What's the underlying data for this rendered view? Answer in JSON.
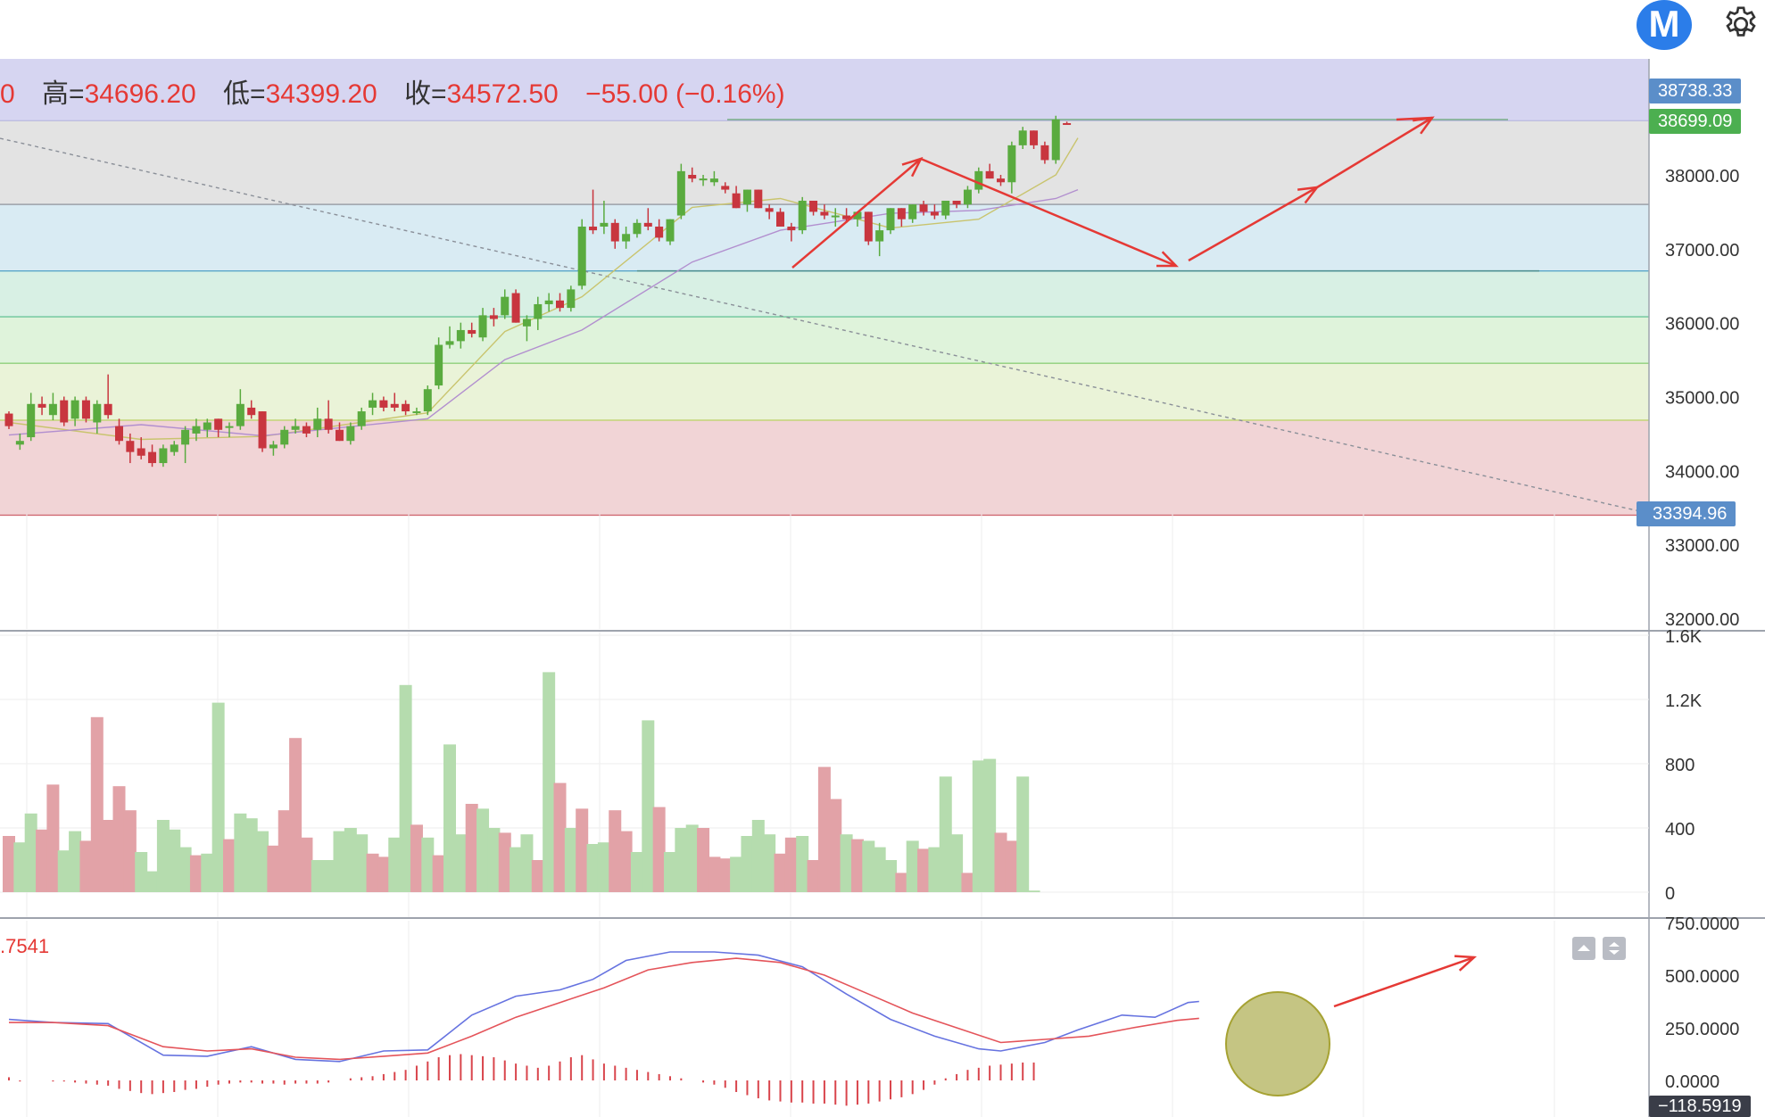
{
  "header": {
    "partial_open": "0",
    "high_label": "高=",
    "high_value": "34696.20",
    "low_label": "低=",
    "low_value": "34399.20",
    "close_label": "收=",
    "close_value": "34572.50",
    "change": "−55.00 (−0.16%)"
  },
  "logo_letter": "M",
  "icons": {
    "logo": "m-logo-icon",
    "settings": "gear-icon",
    "up": "chevron-up-icon",
    "down": "chevron-down-icon"
  },
  "price_tags": {
    "top": "38738.33",
    "current": "38699.09",
    "line_end": "33394.96"
  },
  "macd_readout": ".7541",
  "macd_tag": "−118.5919",
  "colors": {
    "up": "#5aab3f",
    "down": "#c8363f",
    "vol_up": "#b5dcae",
    "vol_down": "#e2a2a7",
    "annotation": "#e53935",
    "current_tag": "#4caf50",
    "top_tag": "#5b8ec9",
    "line_tag": "#5b8ec9"
  },
  "chart_data": [
    {
      "type": "candlestick",
      "yticks": [
        "38000.00",
        "37000.00",
        "36000.00",
        "35000.00",
        "34000.00",
        "33000.00",
        "32000.00"
      ],
      "ylim": [
        31950,
        39450
      ],
      "fib_levels": [
        38738.33,
        37600,
        36700,
        36080,
        35450,
        34680,
        33394.96
      ],
      "candles": [
        [
          34770,
          34800,
          34560,
          34600
        ],
        [
          34350,
          34500,
          34280,
          34400
        ],
        [
          34450,
          35050,
          34400,
          34900
        ],
        [
          34900,
          35000,
          34750,
          34850
        ],
        [
          34750,
          35050,
          34680,
          34900
        ],
        [
          34950,
          35000,
          34600,
          34650
        ],
        [
          34700,
          35000,
          34600,
          34950
        ],
        [
          34950,
          35000,
          34650,
          34700
        ],
        [
          34650,
          34950,
          34500,
          34900
        ],
        [
          34900,
          35300,
          34700,
          34750
        ],
        [
          34600,
          34700,
          34350,
          34400
        ],
        [
          34400,
          34500,
          34100,
          34250
        ],
        [
          34300,
          34450,
          34150,
          34200
        ],
        [
          34250,
          34350,
          34050,
          34100
        ],
        [
          34100,
          34350,
          34050,
          34300
        ],
        [
          34250,
          34400,
          34200,
          34350
        ],
        [
          34350,
          34600,
          34100,
          34550
        ],
        [
          34500,
          34700,
          34400,
          34600
        ],
        [
          34550,
          34700,
          34450,
          34650
        ],
        [
          34700,
          34700,
          34450,
          34550
        ],
        [
          34600,
          34650,
          34450,
          34600
        ],
        [
          34600,
          35100,
          34550,
          34900
        ],
        [
          34850,
          34950,
          34700,
          34750
        ],
        [
          34800,
          34800,
          34250,
          34300
        ],
        [
          34300,
          34400,
          34200,
          34350
        ],
        [
          34350,
          34600,
          34300,
          34550
        ],
        [
          34550,
          34700,
          34500,
          34600
        ],
        [
          34600,
          34650,
          34450,
          34500
        ],
        [
          34550,
          34850,
          34450,
          34700
        ],
        [
          34700,
          34950,
          34500,
          34550
        ],
        [
          34550,
          34650,
          34400,
          34400
        ],
        [
          34400,
          34650,
          34350,
          34600
        ],
        [
          34600,
          34850,
          34550,
          34800
        ],
        [
          34850,
          35050,
          34750,
          34950
        ],
        [
          34950,
          35000,
          34800,
          34850
        ],
        [
          34900,
          35050,
          34800,
          34850
        ],
        [
          34900,
          34950,
          34750,
          34800
        ],
        [
          34800,
          34850,
          34750,
          34800
        ],
        [
          34800,
          35150,
          34750,
          35100
        ],
        [
          35150,
          35800,
          35100,
          35700
        ],
        [
          35700,
          35950,
          35650,
          35750
        ],
        [
          35750,
          36000,
          35650,
          35900
        ],
        [
          35900,
          36000,
          35800,
          35850
        ],
        [
          35800,
          36200,
          35750,
          36100
        ],
        [
          36100,
          36200,
          35950,
          36050
        ],
        [
          36100,
          36450,
          36050,
          36350
        ],
        [
          36400,
          36450,
          36000,
          36000
        ],
        [
          35950,
          36100,
          35750,
          36050
        ],
        [
          36050,
          36350,
          35900,
          36250
        ],
        [
          36250,
          36400,
          36150,
          36300
        ],
        [
          36300,
          36400,
          36150,
          36200
        ],
        [
          36200,
          36500,
          36150,
          36450
        ],
        [
          36500,
          37400,
          36450,
          37300
        ],
        [
          37300,
          37800,
          37200,
          37250
        ],
        [
          37300,
          37650,
          37200,
          37350
        ],
        [
          37350,
          37400,
          37000,
          37100
        ],
        [
          37100,
          37300,
          37000,
          37200
        ],
        [
          37200,
          37400,
          37150,
          37350
        ],
        [
          37350,
          37550,
          37250,
          37300
        ],
        [
          37300,
          37400,
          37100,
          37150
        ],
        [
          37100,
          37400,
          37050,
          37400
        ],
        [
          37450,
          38150,
          37400,
          38050
        ],
        [
          38000,
          38100,
          37900,
          37950
        ],
        [
          37950,
          38000,
          37850,
          37950
        ],
        [
          37900,
          38050,
          37850,
          37950
        ],
        [
          37850,
          37900,
          37750,
          37800
        ],
        [
          37750,
          37850,
          37550,
          37550
        ],
        [
          37600,
          37800,
          37500,
          37800
        ],
        [
          37800,
          37800,
          37550,
          37550
        ],
        [
          37550,
          37600,
          37400,
          37500
        ],
        [
          37500,
          37550,
          37300,
          37300
        ],
        [
          37300,
          37350,
          37100,
          37250
        ],
        [
          37250,
          37700,
          37200,
          37650
        ],
        [
          37650,
          37650,
          37450,
          37500
        ],
        [
          37500,
          37600,
          37400,
          37450
        ],
        [
          37450,
          37550,
          37300,
          37450
        ],
        [
          37450,
          37550,
          37350,
          37400
        ],
        [
          37400,
          37500,
          37300,
          37500
        ],
        [
          37500,
          37500,
          37050,
          37100
        ],
        [
          37100,
          37350,
          36900,
          37250
        ],
        [
          37250,
          37550,
          37200,
          37550
        ],
        [
          37550,
          37550,
          37300,
          37400
        ],
        [
          37400,
          37600,
          37350,
          37600
        ],
        [
          37600,
          37650,
          37450,
          37500
        ],
        [
          37500,
          37600,
          37400,
          37450
        ],
        [
          37450,
          37650,
          37400,
          37650
        ],
        [
          37650,
          37650,
          37550,
          37600
        ],
        [
          37600,
          37850,
          37550,
          37800
        ],
        [
          37800,
          38100,
          37750,
          38050
        ],
        [
          38050,
          38150,
          37950,
          37950
        ],
        [
          37950,
          38000,
          37850,
          37900
        ],
        [
          37900,
          38450,
          37750,
          38400
        ],
        [
          38400,
          38650,
          38350,
          38600
        ],
        [
          38600,
          38600,
          38350,
          38400
        ],
        [
          38400,
          38450,
          38150,
          38200
        ],
        [
          38200,
          38800,
          38150,
          38750
        ],
        [
          38700,
          38720,
          38680,
          38699
        ]
      ],
      "ma": [
        {
          "name": "ma-short",
          "color": "#c9c46e",
          "points": [
            [
              0,
              34650
            ],
            [
              12,
              34420
            ],
            [
              23,
              34460
            ],
            [
              38,
              34780
            ],
            [
              45,
              35880
            ],
            [
              52,
              36350
            ],
            [
              62,
              37560
            ],
            [
              70,
              37680
            ],
            [
              80,
              37280
            ],
            [
              88,
              37400
            ],
            [
              95,
              38000
            ],
            [
              97,
              38500
            ]
          ]
        },
        {
          "name": "ma-long",
          "color": "#b28fcf",
          "points": [
            [
              0,
              34480
            ],
            [
              12,
              34620
            ],
            [
              23,
              34470
            ],
            [
              38,
              34700
            ],
            [
              45,
              35500
            ],
            [
              52,
              35900
            ],
            [
              62,
              36820
            ],
            [
              70,
              37250
            ],
            [
              80,
              37480
            ],
            [
              88,
              37520
            ],
            [
              95,
              37680
            ],
            [
              97,
              37800
            ]
          ]
        }
      ]
    },
    {
      "type": "bar",
      "name": "volume",
      "yticks": [
        "1.6K",
        "1.2K",
        "800",
        "400",
        "0"
      ],
      "ylim": [
        0,
        1600
      ],
      "values": [
        350,
        310,
        490,
        390,
        670,
        260,
        380,
        320,
        1090,
        450,
        660,
        510,
        250,
        130,
        450,
        390,
        280,
        230,
        240,
        1180,
        330,
        490,
        460,
        380,
        290,
        510,
        960,
        340,
        200,
        200,
        380,
        400,
        360,
        240,
        220,
        340,
        1290,
        420,
        340,
        230,
        920,
        360,
        550,
        520,
        400,
        370,
        280,
        360,
        200,
        1370,
        680,
        400,
        520,
        300,
        310,
        510,
        380,
        250,
        1070,
        530,
        250,
        400,
        420,
        400,
        220,
        210,
        220,
        350,
        450,
        360,
        240,
        340,
        350,
        200,
        780,
        580,
        360,
        330,
        320,
        280,
        200,
        120,
        320,
        270,
        280,
        720,
        360,
        120,
        820,
        830,
        370,
        320,
        720,
        10
      ],
      "up": [
        0,
        1,
        1,
        0,
        0,
        1,
        1,
        0,
        0,
        0,
        0,
        0,
        1,
        1,
        1,
        1,
        1,
        0,
        1,
        1,
        0,
        1,
        1,
        1,
        0,
        0,
        0,
        0,
        1,
        1,
        1,
        1,
        1,
        0,
        0,
        1,
        1,
        0,
        1,
        0,
        1,
        1,
        0,
        1,
        1,
        0,
        1,
        1,
        0,
        1,
        0,
        1,
        0,
        1,
        1,
        0,
        0,
        1,
        1,
        0,
        1,
        1,
        1,
        0,
        0,
        0,
        1,
        1,
        1,
        1,
        0,
        0,
        1,
        0,
        0,
        0,
        1,
        0,
        1,
        1,
        1,
        0,
        1,
        0,
        1,
        1,
        1,
        0,
        1,
        1,
        0,
        0,
        1,
        1
      ]
    },
    {
      "type": "line",
      "name": "macd",
      "yticks": [
        "750.0000",
        "500.0000",
        "250.0000",
        "0.0000"
      ],
      "ylim": [
        -170,
        760
      ],
      "series": [
        {
          "name": "dif",
          "color": "#6673e0",
          "points": [
            [
              0,
              290
            ],
            [
              4,
              275
            ],
            [
              9,
              270
            ],
            [
              14,
              120
            ],
            [
              18,
              115
            ],
            [
              22,
              160
            ],
            [
              26,
              100
            ],
            [
              30,
              90
            ],
            [
              34,
              140
            ],
            [
              38,
              145
            ],
            [
              42,
              310
            ],
            [
              46,
              400
            ],
            [
              50,
              430
            ],
            [
              53,
              480
            ],
            [
              56,
              570
            ],
            [
              60,
              610
            ],
            [
              64,
              610
            ],
            [
              68,
              595
            ],
            [
              72,
              540
            ],
            [
              76,
              410
            ],
            [
              80,
              290
            ],
            [
              84,
              210
            ],
            [
              88,
              150
            ],
            [
              90,
              140
            ],
            [
              94,
              180
            ],
            [
              97,
              240
            ],
            [
              101,
              310
            ],
            [
              104,
              300
            ],
            [
              107,
              370
            ],
            [
              108,
              375
            ]
          ]
        },
        {
          "name": "dea",
          "color": "#e4545a",
          "points": [
            [
              0,
              275
            ],
            [
              4,
              275
            ],
            [
              9,
              260
            ],
            [
              14,
              160
            ],
            [
              18,
              140
            ],
            [
              22,
              150
            ],
            [
              26,
              110
            ],
            [
              30,
              100
            ],
            [
              34,
              115
            ],
            [
              38,
              130
            ],
            [
              42,
              210
            ],
            [
              46,
              300
            ],
            [
              50,
              370
            ],
            [
              54,
              440
            ],
            [
              58,
              525
            ],
            [
              62,
              560
            ],
            [
              66,
              580
            ],
            [
              70,
              560
            ],
            [
              74,
              500
            ],
            [
              78,
              410
            ],
            [
              82,
              320
            ],
            [
              86,
              250
            ],
            [
              90,
              180
            ],
            [
              94,
              195
            ],
            [
              98,
              210
            ],
            [
              102,
              250
            ],
            [
              106,
              285
            ],
            [
              108,
              295
            ]
          ]
        }
      ],
      "histogram": [
        15,
        -5,
        0,
        0,
        -5,
        -5,
        -10,
        -15,
        -20,
        -25,
        -40,
        -50,
        -60,
        -65,
        -60,
        -55,
        -45,
        -40,
        -30,
        -20,
        -15,
        -10,
        -10,
        -15,
        -15,
        -20,
        -15,
        -15,
        -15,
        -10,
        0,
        10,
        15,
        20,
        30,
        40,
        50,
        70,
        90,
        110,
        120,
        125,
        120,
        115,
        110,
        95,
        80,
        70,
        60,
        70,
        90,
        110,
        120,
        100,
        80,
        70,
        60,
        50,
        40,
        30,
        20,
        10,
        0,
        -10,
        -20,
        -35,
        -55,
        -70,
        -85,
        -95,
        -100,
        -105,
        -105,
        -110,
        -110,
        -115,
        -120,
        -115,
        -110,
        -100,
        -90,
        -80,
        -65,
        -45,
        -20,
        10,
        30,
        50,
        60,
        70,
        75,
        80,
        85,
        85
      ]
    }
  ]
}
